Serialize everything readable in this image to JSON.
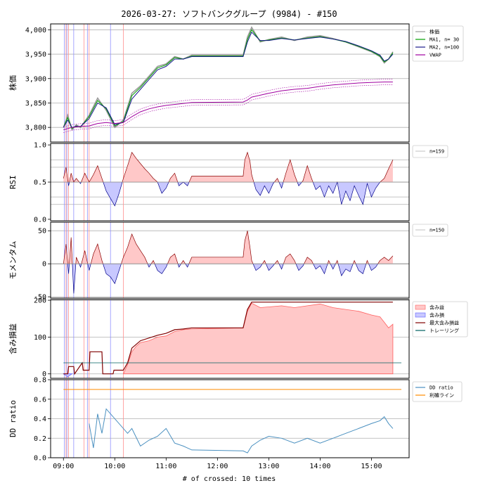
{
  "title": "2026-03-27: ソフトバンクグループ (9984) - #150",
  "xlabel": "# of crossed: 10 times",
  "colors": {
    "price": "#999999",
    "ma1": "#00a000",
    "ma2": "#1a1a8c",
    "vwap": "#a000a0",
    "pos_fill": "#ffc8c8",
    "pos_line": "#8b0000",
    "neg_fill": "#c8c8ff",
    "neg_line": "#00008b",
    "profit_line": "#ff6060",
    "maxprofit": "#800000",
    "trailing": "#006060",
    "dd": "#4a90c0",
    "limit": "#ff8c00",
    "vline_red": "#ff9090",
    "vline_blue": "#9090ff"
  },
  "chart_data": [
    {
      "type": "line",
      "panel": "price",
      "ylabel": "株価",
      "ylim": [
        3770,
        4012
      ],
      "yticks": [
        3800,
        3850,
        3900,
        3950,
        4000
      ],
      "ytick_labels": [
        "3,800",
        "3,850",
        "3,900",
        "3,950",
        "4,000"
      ],
      "grid": true,
      "legend_position": "top-right",
      "series": [
        {
          "name": "株価",
          "x": [
            "09:00",
            "09:05",
            "09:10",
            "09:15",
            "09:20",
            "09:30",
            "09:40",
            "09:50",
            "10:00",
            "10:10",
            "10:20",
            "10:30",
            "10:40",
            "10:50",
            "11:00",
            "11:10",
            "11:20",
            "11:30",
            "12:30",
            "12:35",
            "12:40",
            "12:50",
            "13:00",
            "13:15",
            "13:30",
            "13:45",
            "14:00",
            "14:15",
            "14:30",
            "14:45",
            "15:00",
            "15:10",
            "15:15",
            "15:20",
            "15:25"
          ],
          "y": [
            3800,
            3825,
            3795,
            3805,
            3800,
            3825,
            3860,
            3835,
            3800,
            3815,
            3870,
            3885,
            3905,
            3925,
            3930,
            3945,
            3940,
            3948,
            3948,
            3985,
            4005,
            3975,
            3980,
            3985,
            3978,
            3985,
            3988,
            3982,
            3975,
            3965,
            3955,
            3945,
            3932,
            3940,
            3955
          ]
        },
        {
          "name": "MA1, n= 30",
          "x": [
            "09:00",
            "09:05",
            "09:10",
            "09:15",
            "09:20",
            "09:30",
            "09:40",
            "09:50",
            "10:00",
            "10:10",
            "10:20",
            "10:30",
            "10:40",
            "10:50",
            "11:00",
            "11:10",
            "11:20",
            "11:30",
            "12:30",
            "12:35",
            "12:40",
            "12:50",
            "13:00",
            "13:15",
            "13:30",
            "13:45",
            "14:00",
            "14:15",
            "14:30",
            "14:45",
            "15:00",
            "15:10",
            "15:15",
            "15:20",
            "15:25"
          ],
          "y": [
            3800,
            3820,
            3798,
            3803,
            3801,
            3822,
            3855,
            3838,
            3803,
            3812,
            3865,
            3882,
            3902,
            3922,
            3928,
            3943,
            3940,
            3946,
            3946,
            3980,
            4000,
            3977,
            3979,
            3983,
            3979,
            3983,
            3986,
            3981,
            3975,
            3966,
            3956,
            3946,
            3934,
            3940,
            3953
          ]
        },
        {
          "name": "MA2, n=100",
          "x": [
            "09:00",
            "09:05",
            "09:10",
            "09:15",
            "09:20",
            "09:30",
            "09:40",
            "09:50",
            "10:00",
            "10:10",
            "10:20",
            "10:30",
            "10:40",
            "10:50",
            "11:00",
            "11:10",
            "11:20",
            "11:30",
            "12:30",
            "12:35",
            "12:40",
            "12:50",
            "13:00",
            "13:15",
            "13:30",
            "13:45",
            "14:00",
            "14:15",
            "14:30",
            "14:45",
            "15:00",
            "15:10",
            "15:15",
            "15:20",
            "15:25"
          ],
          "y": [
            3800,
            3815,
            3800,
            3802,
            3802,
            3818,
            3850,
            3840,
            3806,
            3810,
            3858,
            3878,
            3898,
            3918,
            3925,
            3940,
            3940,
            3945,
            3945,
            3975,
            3995,
            3978,
            3978,
            3982,
            3979,
            3982,
            3985,
            3981,
            3976,
            3967,
            3957,
            3948,
            3936,
            3940,
            3950
          ]
        },
        {
          "name": "VWAP",
          "x": [
            "09:00",
            "09:10",
            "09:20",
            "09:30",
            "09:40",
            "09:50",
            "10:00",
            "10:10",
            "10:20",
            "10:30",
            "10:40",
            "10:50",
            "11:00",
            "11:15",
            "11:30",
            "12:30",
            "12:35",
            "12:40",
            "12:50",
            "13:00",
            "13:15",
            "13:30",
            "13:45",
            "14:00",
            "14:15",
            "14:30",
            "14:45",
            "15:00",
            "15:15",
            "15:25"
          ],
          "y": [
            3795,
            3800,
            3802,
            3803,
            3808,
            3810,
            3808,
            3810,
            3822,
            3832,
            3838,
            3842,
            3845,
            3848,
            3851,
            3852,
            3856,
            3862,
            3866,
            3870,
            3875,
            3878,
            3880,
            3884,
            3887,
            3889,
            3891,
            3892,
            3893,
            3893
          ]
        }
      ]
    },
    {
      "type": "area",
      "panel": "rsi",
      "ylabel": "RSI",
      "ylim": [
        -0.02,
        1.02
      ],
      "yticks": [
        0.0,
        0.5,
        1.0
      ],
      "ytick_labels": [
        "0.0",
        "0.5",
        "1.0"
      ],
      "reference_lines": [
        0.2,
        0.3,
        0.5,
        0.7,
        0.8
      ],
      "baseline": 0.5,
      "legend_position": "top-right",
      "series": [
        {
          "name": "n=159",
          "x": [
            "09:00",
            "09:03",
            "09:06",
            "09:09",
            "09:12",
            "09:15",
            "09:20",
            "09:25",
            "09:30",
            "09:35",
            "09:40",
            "09:45",
            "09:50",
            "09:55",
            "10:00",
            "10:05",
            "10:10",
            "10:15",
            "10:20",
            "10:25",
            "10:30",
            "10:35",
            "10:40",
            "10:45",
            "10:50",
            "10:55",
            "11:00",
            "11:05",
            "11:10",
            "11:15",
            "11:20",
            "11:25",
            "11:30",
            "12:30",
            "12:32",
            "12:35",
            "12:38",
            "12:40",
            "12:45",
            "12:50",
            "12:55",
            "13:00",
            "13:05",
            "13:10",
            "13:15",
            "13:20",
            "13:25",
            "13:30",
            "13:35",
            "13:40",
            "13:45",
            "13:50",
            "13:55",
            "14:00",
            "14:05",
            "14:10",
            "14:15",
            "14:20",
            "14:25",
            "14:30",
            "14:35",
            "14:40",
            "14:45",
            "14:50",
            "14:55",
            "15:00",
            "15:05",
            "15:10",
            "15:15",
            "15:20",
            "15:25"
          ],
          "y": [
            0.55,
            0.7,
            0.45,
            0.62,
            0.5,
            0.55,
            0.48,
            0.62,
            0.5,
            0.6,
            0.72,
            0.55,
            0.38,
            0.28,
            0.18,
            0.35,
            0.55,
            0.72,
            0.9,
            0.82,
            0.75,
            0.68,
            0.62,
            0.55,
            0.5,
            0.35,
            0.42,
            0.55,
            0.62,
            0.45,
            0.5,
            0.45,
            0.58,
            0.58,
            0.8,
            0.9,
            0.78,
            0.6,
            0.4,
            0.32,
            0.45,
            0.35,
            0.48,
            0.55,
            0.42,
            0.62,
            0.8,
            0.6,
            0.45,
            0.52,
            0.72,
            0.55,
            0.4,
            0.45,
            0.3,
            0.45,
            0.35,
            0.5,
            0.2,
            0.38,
            0.25,
            0.45,
            0.32,
            0.2,
            0.48,
            0.3,
            0.42,
            0.5,
            0.55,
            0.68,
            0.8
          ]
        }
      ]
    },
    {
      "type": "area",
      "panel": "momentum",
      "ylabel": "モメンタム",
      "ylim": [
        -52,
        63
      ],
      "yticks": [
        -50,
        0,
        50
      ],
      "ytick_labels": [
        "-50",
        "0",
        "50"
      ],
      "baseline": 0,
      "legend_position": "top-right",
      "series": [
        {
          "name": "n=150",
          "x": [
            "09:00",
            "09:03",
            "09:06",
            "09:09",
            "09:12",
            "09:15",
            "09:20",
            "09:25",
            "09:30",
            "09:35",
            "09:40",
            "09:45",
            "09:50",
            "09:55",
            "10:00",
            "10:05",
            "10:10",
            "10:15",
            "10:20",
            "10:25",
            "10:30",
            "10:35",
            "10:40",
            "10:45",
            "10:50",
            "10:55",
            "11:00",
            "11:05",
            "11:10",
            "11:15",
            "11:20",
            "11:25",
            "11:30",
            "12:30",
            "12:32",
            "12:35",
            "12:38",
            "12:40",
            "12:45",
            "12:50",
            "12:55",
            "13:00",
            "13:05",
            "13:10",
            "13:15",
            "13:20",
            "13:25",
            "13:30",
            "13:35",
            "13:40",
            "13:45",
            "13:50",
            "13:55",
            "14:00",
            "14:05",
            "14:10",
            "14:15",
            "14:20",
            "14:25",
            "14:30",
            "14:35",
            "14:40",
            "14:45",
            "14:50",
            "14:55",
            "15:00",
            "15:05",
            "15:10",
            "15:15",
            "15:20",
            "15:25"
          ],
          "y": [
            0,
            30,
            -15,
            40,
            -45,
            10,
            -5,
            20,
            -10,
            15,
            30,
            5,
            -15,
            -20,
            -30,
            -10,
            10,
            25,
            45,
            30,
            20,
            10,
            -5,
            5,
            -10,
            -15,
            -5,
            10,
            15,
            -5,
            5,
            -5,
            10,
            10,
            35,
            50,
            25,
            5,
            -10,
            -5,
            5,
            -10,
            -3,
            5,
            -8,
            10,
            15,
            5,
            -10,
            -3,
            10,
            5,
            -8,
            -3,
            -15,
            5,
            -8,
            5,
            -18,
            -8,
            -12,
            5,
            -10,
            -15,
            5,
            -10,
            -5,
            5,
            10,
            5,
            12
          ]
        }
      ]
    },
    {
      "type": "area",
      "panel": "profit",
      "ylabel": "含み損益",
      "ylim": [
        -12,
        202
      ],
      "yticks": [
        0,
        100,
        200
      ],
      "ytick_labels": [
        "0",
        "100",
        "200"
      ],
      "legend_position": "top-right",
      "series": [
        {
          "name": "含み益",
          "x": [
            "10:10",
            "10:15",
            "10:20",
            "10:25",
            "10:30",
            "10:40",
            "10:50",
            "11:00",
            "11:10",
            "11:20",
            "11:30",
            "12:30",
            "12:35",
            "12:40",
            "12:50",
            "13:00",
            "13:15",
            "13:30",
            "13:45",
            "14:00",
            "14:15",
            "14:30",
            "14:45",
            "15:00",
            "15:10",
            "15:15",
            "15:20",
            "15:25"
          ],
          "y": [
            0,
            25,
            60,
            75,
            85,
            90,
            100,
            103,
            115,
            120,
            122,
            125,
            170,
            192,
            180,
            182,
            185,
            180,
            185,
            190,
            180,
            175,
            170,
            160,
            155,
            140,
            125,
            135
          ]
        },
        {
          "name": "含み損",
          "x": [
            "09:00",
            "09:05",
            "09:10"
          ],
          "y": [
            0,
            -8,
            0
          ]
        },
        {
          "name": "最大含み損益",
          "x": [
            "09:00",
            "09:05",
            "09:06",
            "09:12",
            "09:13",
            "09:22",
            "09:23",
            "09:30",
            "09:31",
            "09:45",
            "09:46",
            "09:58",
            "09:59",
            "10:10",
            "10:15",
            "10:20",
            "10:30",
            "10:50",
            "11:00",
            "11:10",
            "11:20",
            "11:30",
            "12:30",
            "12:35",
            "12:40",
            "12:50",
            "15:25"
          ],
          "y": [
            0,
            0,
            20,
            20,
            0,
            30,
            10,
            10,
            60,
            60,
            0,
            0,
            10,
            10,
            30,
            70,
            90,
            105,
            110,
            120,
            122,
            125,
            125,
            175,
            195,
            195,
            195
          ]
        },
        {
          "name": "トレーリング",
          "x": [
            "09:00",
            "15:35"
          ],
          "y": [
            30,
            30
          ]
        }
      ]
    },
    {
      "type": "line",
      "panel": "dd",
      "ylabel": "DD ratio",
      "ylim": [
        0.0,
        0.8
      ],
      "yticks": [
        0.0,
        0.2,
        0.4,
        0.6,
        0.8
      ],
      "ytick_labels": [
        "0.0",
        "0.2",
        "0.4",
        "0.6",
        "0.8"
      ],
      "grid": true,
      "legend_position": "top-right",
      "series": [
        {
          "name": "DD ratio",
          "x": [
            "09:30",
            "09:35",
            "09:40",
            "09:45",
            "09:50",
            "10:15",
            "10:20",
            "10:30",
            "10:40",
            "10:50",
            "11:00",
            "11:10",
            "11:20",
            "11:30",
            "12:30",
            "12:35",
            "12:40",
            "12:50",
            "13:00",
            "13:15",
            "13:30",
            "13:45",
            "14:00",
            "14:15",
            "14:30",
            "14:45",
            "15:00",
            "15:10",
            "15:15",
            "15:20",
            "15:25"
          ],
          "y": [
            0.35,
            0.1,
            0.45,
            0.25,
            0.5,
            0.25,
            0.3,
            0.12,
            0.18,
            0.22,
            0.3,
            0.15,
            0.12,
            0.08,
            0.07,
            0.05,
            0.12,
            0.18,
            0.22,
            0.2,
            0.15,
            0.2,
            0.15,
            0.2,
            0.25,
            0.3,
            0.35,
            0.38,
            0.42,
            0.35,
            0.3
          ]
        },
        {
          "name": "利確ライン",
          "x": [
            "09:00",
            "15:35"
          ],
          "y": [
            0.7,
            0.7
          ]
        }
      ]
    }
  ],
  "x_axis": {
    "tick_labels": [
      "09:00",
      "10:00",
      "11:00",
      "12:00",
      "13:00",
      "14:00",
      "15:00"
    ]
  },
  "crossings": {
    "red": [
      "09:03",
      "09:06",
      "09:24",
      "09:30",
      "10:10"
    ],
    "blue": [
      "09:01",
      "09:04",
      "09:12",
      "09:28",
      "09:55"
    ]
  }
}
